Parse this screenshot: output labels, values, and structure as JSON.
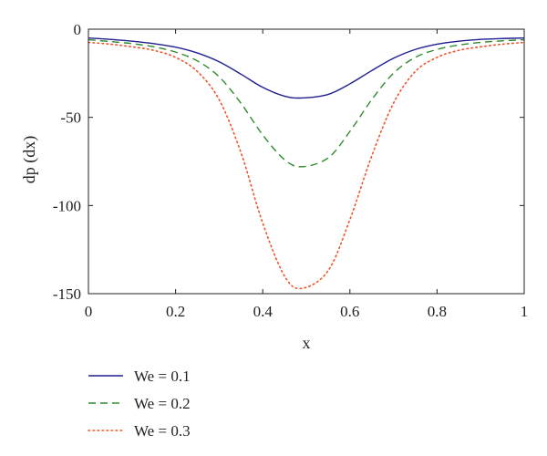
{
  "chart_data": {
    "type": "line",
    "xlabel": "x",
    "ylabel": "dp (dx)",
    "xlim": [
      0,
      1
    ],
    "ylim": [
      -150,
      0
    ],
    "x_ticks": [
      0,
      0.2,
      0.4,
      0.6,
      0.8,
      1
    ],
    "x_tick_labels": [
      "0",
      "0.2",
      "0.4",
      "0.6",
      "0.8",
      "1"
    ],
    "y_ticks": [
      0,
      -50,
      -100,
      -150
    ],
    "y_tick_labels": [
      "0",
      "-50",
      "-100",
      "-150"
    ],
    "grid": false,
    "legend_position": "bottom-left, below plot",
    "x": [
      0,
      0.05,
      0.1,
      0.15,
      0.2,
      0.25,
      0.3,
      0.35,
      0.4,
      0.45,
      0.49,
      0.55,
      0.6,
      0.65,
      0.7,
      0.75,
      0.8,
      0.85,
      0.9,
      0.95,
      1
    ],
    "series": [
      {
        "name": "We = 0.1",
        "color": "#1f1f8f",
        "style": "solid",
        "values": [
          -5,
          -5.8,
          -6.8,
          -8.2,
          -10.2,
          -13.5,
          -18.5,
          -25.5,
          -33,
          -38,
          -39,
          -37,
          -31,
          -23.5,
          -16.5,
          -11.5,
          -8.5,
          -6.8,
          -5.8,
          -5.3,
          -5
        ]
      },
      {
        "name": "We = 0.2",
        "color": "#2e8b2e",
        "style": "dashed",
        "values": [
          -6,
          -7,
          -8.2,
          -10,
          -13,
          -18,
          -27,
          -42,
          -60,
          -74,
          -78,
          -73,
          -58,
          -40,
          -25,
          -16,
          -11.5,
          -9,
          -7.5,
          -6.6,
          -6
        ]
      },
      {
        "name": "We = 0.3",
        "color": "#f0552a",
        "style": "dotted",
        "values": [
          -7.5,
          -8.5,
          -10,
          -12,
          -16,
          -24,
          -40,
          -70,
          -110,
          -140,
          -147,
          -137,
          -108,
          -72,
          -42,
          -24,
          -16,
          -12,
          -10,
          -8.5,
          -7.5
        ]
      }
    ]
  }
}
